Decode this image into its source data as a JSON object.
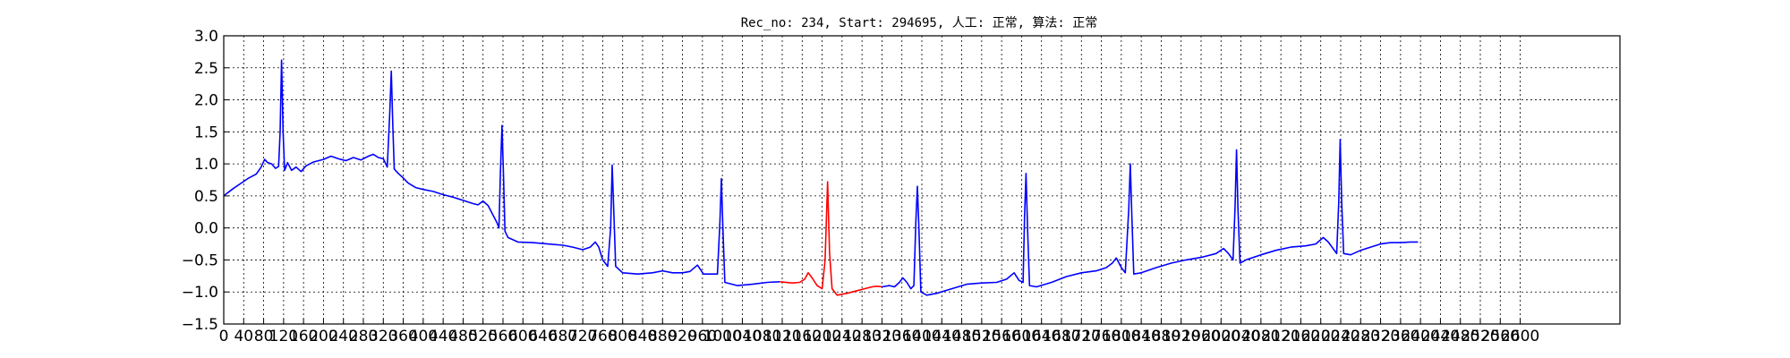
{
  "chart_data": {
    "type": "line",
    "title": "Rec_no: 234, Start: 294695, 人工: 正常, 算法: 正常",
    "xlabel": "",
    "ylabel": "",
    "xlim": [
      0,
      2800
    ],
    "ylim": [
      -1.5,
      3.0
    ],
    "grid": true,
    "y_ticks": [
      "3.0",
      "2.5",
      "2.0",
      "1.5",
      "1.0",
      "0.5",
      "0.0",
      "−0.5",
      "−1.0",
      "−1.5"
    ],
    "x_tick_labels": [
      "0",
      "40",
      "80",
      "120",
      "160",
      "200",
      "240",
      "280",
      "320",
      "360",
      "400",
      "440",
      "480",
      "520",
      "560",
      "600",
      "640",
      "680",
      "720",
      "760",
      "800",
      "840",
      "880",
      "920",
      "960",
      "1000",
      "1040",
      "1080",
      "1120",
      "1160",
      "1200",
      "1240",
      "1280",
      "1320",
      "1360",
      "1400",
      "1440",
      "1480",
      "1520",
      "1560",
      "1600",
      "1640",
      "1680",
      "1720",
      "1760",
      "1800",
      "1840",
      "1880",
      "1920",
      "1960",
      "2000",
      "2040",
      "2080",
      "2120",
      "2160",
      "2200",
      "2240",
      "2280",
      "2320",
      "2360",
      "2400",
      "2440",
      "2480",
      "2520",
      "2560",
      "2600"
    ],
    "series": [
      {
        "color": "#0000ff",
        "points": [
          [
            0,
            0.5
          ],
          [
            8,
            0.55
          ],
          [
            20,
            0.62
          ],
          [
            35,
            0.7
          ],
          [
            50,
            0.78
          ],
          [
            65,
            0.84
          ],
          [
            75,
            0.95
          ],
          [
            82,
            1.07
          ],
          [
            88,
            1.02
          ],
          [
            96,
            1.0
          ],
          [
            104,
            0.93
          ],
          [
            110,
            0.96
          ],
          [
            113,
            1.5
          ],
          [
            116,
            2.62
          ],
          [
            119,
            1.5
          ],
          [
            122,
            0.9
          ],
          [
            128,
            1.02
          ],
          [
            136,
            0.9
          ],
          [
            145,
            0.95
          ],
          [
            155,
            0.88
          ],
          [
            165,
            0.97
          ],
          [
            180,
            1.03
          ],
          [
            200,
            1.07
          ],
          [
            215,
            1.12
          ],
          [
            230,
            1.08
          ],
          [
            245,
            1.05
          ],
          [
            260,
            1.1
          ],
          [
            275,
            1.06
          ],
          [
            290,
            1.12
          ],
          [
            300,
            1.15
          ],
          [
            310,
            1.1
          ],
          [
            320,
            1.08
          ],
          [
            328,
            0.95
          ],
          [
            333,
            1.8
          ],
          [
            336,
            2.45
          ],
          [
            339,
            1.6
          ],
          [
            342,
            0.92
          ],
          [
            350,
            0.85
          ],
          [
            360,
            0.78
          ],
          [
            370,
            0.7
          ],
          [
            385,
            0.63
          ],
          [
            400,
            0.6
          ],
          [
            420,
            0.57
          ],
          [
            440,
            0.52
          ],
          [
            460,
            0.48
          ],
          [
            480,
            0.43
          ],
          [
            500,
            0.38
          ],
          [
            510,
            0.36
          ],
          [
            520,
            0.42
          ],
          [
            530,
            0.35
          ],
          [
            540,
            0.2
          ],
          [
            548,
            0.08
          ],
          [
            552,
            0.0
          ],
          [
            555,
            0.9
          ],
          [
            558,
            1.6
          ],
          [
            561,
            0.8
          ],
          [
            564,
            -0.05
          ],
          [
            570,
            -0.15
          ],
          [
            590,
            -0.22
          ],
          [
            620,
            -0.23
          ],
          [
            650,
            -0.25
          ],
          [
            680,
            -0.27
          ],
          [
            700,
            -0.3
          ],
          [
            720,
            -0.34
          ],
          [
            735,
            -0.3
          ],
          [
            745,
            -0.22
          ],
          [
            752,
            -0.3
          ],
          [
            760,
            -0.5
          ],
          [
            770,
            -0.6
          ],
          [
            776,
            0.0
          ],
          [
            779,
            0.98
          ],
          [
            782,
            0.3
          ],
          [
            786,
            -0.6
          ],
          [
            800,
            -0.7
          ],
          [
            830,
            -0.72
          ],
          [
            860,
            -0.7
          ],
          [
            880,
            -0.67
          ],
          [
            900,
            -0.7
          ],
          [
            920,
            -0.7
          ],
          [
            935,
            -0.68
          ],
          [
            950,
            -0.58
          ],
          [
            962,
            -0.72
          ],
          [
            990,
            -0.72
          ],
          [
            995,
            0.1
          ],
          [
            998,
            0.77
          ],
          [
            1001,
            0.0
          ],
          [
            1005,
            -0.85
          ],
          [
            1030,
            -0.9
          ],
          [
            1060,
            -0.88
          ],
          [
            1090,
            -0.85
          ],
          [
            1115,
            -0.84
          ]
        ]
      },
      {
        "color": "#ff0000",
        "points": [
          [
            1115,
            -0.84
          ],
          [
            1140,
            -0.86
          ],
          [
            1155,
            -0.85
          ],
          [
            1165,
            -0.8
          ],
          [
            1172,
            -0.7
          ],
          [
            1180,
            -0.78
          ],
          [
            1190,
            -0.9
          ],
          [
            1200,
            -0.95
          ],
          [
            1206,
            -0.5
          ],
          [
            1211,
            0.72
          ],
          [
            1215,
            -0.4
          ],
          [
            1220,
            -0.95
          ],
          [
            1230,
            -1.05
          ],
          [
            1250,
            -1.02
          ],
          [
            1270,
            -0.98
          ],
          [
            1285,
            -0.95
          ],
          [
            1300,
            -0.92
          ],
          [
            1310,
            -0.91
          ],
          [
            1320,
            -0.92
          ]
        ]
      },
      {
        "color": "#0000ff",
        "points": [
          [
            1320,
            -0.92
          ],
          [
            1335,
            -0.9
          ],
          [
            1345,
            -0.92
          ],
          [
            1355,
            -0.85
          ],
          [
            1362,
            -0.78
          ],
          [
            1370,
            -0.85
          ],
          [
            1378,
            -0.95
          ],
          [
            1384,
            -0.9
          ],
          [
            1388,
            0.1
          ],
          [
            1391,
            0.65
          ],
          [
            1394,
            0.0
          ],
          [
            1398,
            -1.0
          ],
          [
            1410,
            -1.05
          ],
          [
            1430,
            -1.02
          ],
          [
            1460,
            -0.95
          ],
          [
            1490,
            -0.88
          ],
          [
            1520,
            -0.86
          ],
          [
            1550,
            -0.85
          ],
          [
            1570,
            -0.8
          ],
          [
            1585,
            -0.7
          ],
          [
            1595,
            -0.82
          ],
          [
            1603,
            -0.85
          ],
          [
            1606,
            0.2
          ],
          [
            1609,
            0.85
          ],
          [
            1612,
            0.0
          ],
          [
            1616,
            -0.9
          ],
          [
            1630,
            -0.92
          ],
          [
            1660,
            -0.85
          ],
          [
            1690,
            -0.76
          ],
          [
            1720,
            -0.7
          ],
          [
            1750,
            -0.67
          ],
          [
            1770,
            -0.62
          ],
          [
            1782,
            -0.55
          ],
          [
            1790,
            -0.47
          ],
          [
            1800,
            -0.62
          ],
          [
            1808,
            -0.7
          ],
          [
            1815,
            0.3
          ],
          [
            1818,
            1.0
          ],
          [
            1821,
            0.2
          ],
          [
            1825,
            -0.72
          ],
          [
            1840,
            -0.7
          ],
          [
            1870,
            -0.62
          ],
          [
            1900,
            -0.55
          ],
          [
            1930,
            -0.5
          ],
          [
            1960,
            -0.46
          ],
          [
            1990,
            -0.4
          ],
          [
            2005,
            -0.32
          ],
          [
            2015,
            -0.4
          ],
          [
            2024,
            -0.5
          ],
          [
            2028,
            0.3
          ],
          [
            2031,
            1.22
          ],
          [
            2034,
            0.3
          ],
          [
            2038,
            -0.55
          ],
          [
            2050,
            -0.5
          ],
          [
            2080,
            -0.42
          ],
          [
            2110,
            -0.35
          ],
          [
            2140,
            -0.3
          ],
          [
            2170,
            -0.28
          ],
          [
            2190,
            -0.25
          ],
          [
            2205,
            -0.15
          ],
          [
            2215,
            -0.22
          ],
          [
            2232,
            -0.4
          ],
          [
            2236,
            0.4
          ],
          [
            2239,
            1.38
          ],
          [
            2242,
            0.4
          ],
          [
            2246,
            -0.4
          ],
          [
            2260,
            -0.42
          ],
          [
            2280,
            -0.35
          ],
          [
            2300,
            -0.3
          ],
          [
            2320,
            -0.25
          ],
          [
            2340,
            -0.23
          ],
          [
            2360,
            -0.23
          ],
          [
            2380,
            -0.22
          ],
          [
            2395,
            -0.22
          ]
        ]
      }
    ]
  }
}
